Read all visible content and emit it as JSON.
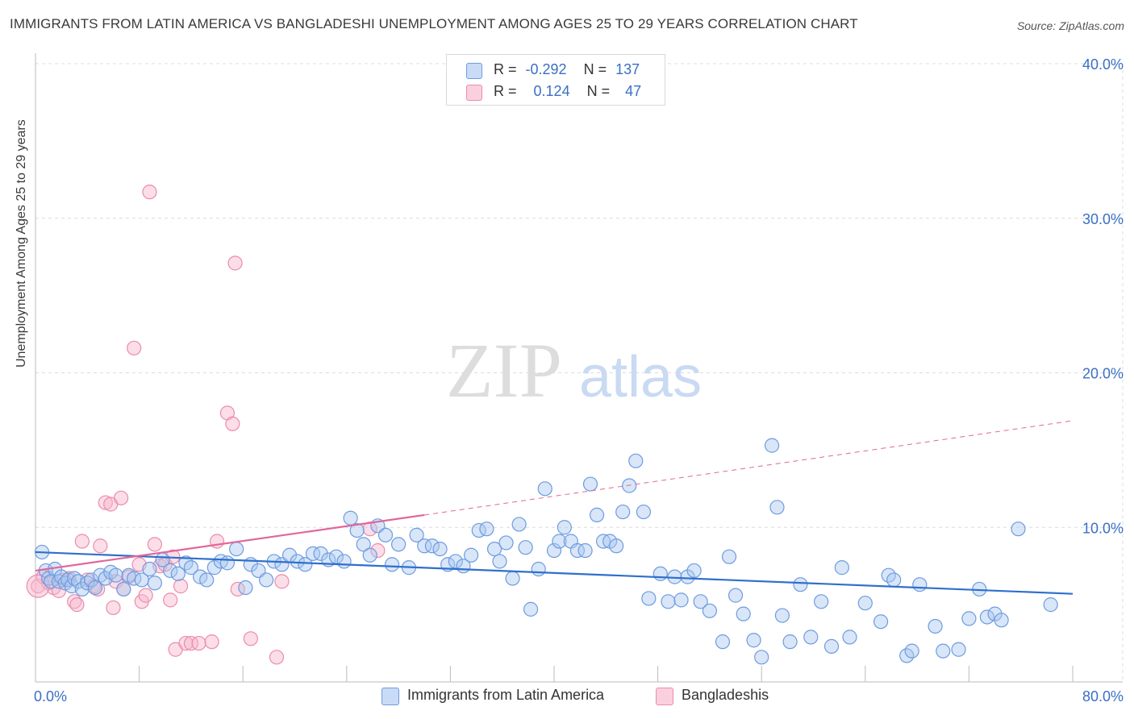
{
  "title": "IMMIGRANTS FROM LATIN AMERICA VS BANGLADESHI UNEMPLOYMENT AMONG AGES 25 TO 29 YEARS CORRELATION CHART",
  "source": "Source: ZipAtlas.com",
  "watermark": {
    "zip": "ZIP",
    "atlas": "atlas"
  },
  "legend": {
    "rows": [
      {
        "r_label": "R =",
        "r_value": "-0.292",
        "n_label": "N =",
        "n_value": "137"
      },
      {
        "r_label": "R =",
        "r_value": "0.124",
        "n_label": "N =",
        "n_value": "47"
      }
    ]
  },
  "bottom_legend": [
    "Immigrants from Latin America",
    "Bangladeshis"
  ],
  "colors": {
    "blue_fill": "#a9c7f0",
    "blue_stroke": "#6e9be0",
    "blue_line": "#2f6fcc",
    "pink_fill": "#f7b6cb",
    "pink_stroke": "#ec8bac",
    "pink_line": "#e0679a",
    "axis_text": "#3a6fc4",
    "grid": "#dcdcdc"
  },
  "chart_data": {
    "type": "scatter",
    "title": "IMMIGRANTS FROM LATIN AMERICA VS BANGLADESHI UNEMPLOYMENT AMONG AGES 25 TO 29 YEARS CORRELATION CHART",
    "xlabel": "",
    "ylabel": "Unemployment Among Ages 25 to 29 years",
    "xlim": [
      0,
      80
    ],
    "ylim": [
      0,
      40
    ],
    "x_tick_labels": [
      "0.0%",
      "80.0%"
    ],
    "y_ticks": [
      10,
      20,
      30,
      40
    ],
    "y_tick_labels": [
      "10.0%",
      "20.0%",
      "30.0%",
      "40.0%"
    ],
    "grid": true,
    "legend_position": "top-center",
    "series": [
      {
        "name": "Immigrants from Latin America",
        "r": -0.292,
        "n": 137,
        "trend": {
          "x": [
            0,
            80
          ],
          "y": [
            8.4,
            5.7
          ]
        },
        "points": [
          [
            0.5,
            8.4
          ],
          [
            0.8,
            7.2
          ],
          [
            1.0,
            6.7
          ],
          [
            1.2,
            6.5
          ],
          [
            1.5,
            7.3
          ],
          [
            1.8,
            6.5
          ],
          [
            2.0,
            6.8
          ],
          [
            2.3,
            6.4
          ],
          [
            2.5,
            6.6
          ],
          [
            2.8,
            6.2
          ],
          [
            3.0,
            6.7
          ],
          [
            3.3,
            6.5
          ],
          [
            3.6,
            6.0
          ],
          [
            4.0,
            6.4
          ],
          [
            4.3,
            6.6
          ],
          [
            4.6,
            6.1
          ],
          [
            5.0,
            6.9
          ],
          [
            5.4,
            6.7
          ],
          [
            5.8,
            7.1
          ],
          [
            6.2,
            6.9
          ],
          [
            6.8,
            6.0
          ],
          [
            7.2,
            6.9
          ],
          [
            7.6,
            6.7
          ],
          [
            8.2,
            6.6
          ],
          [
            8.8,
            7.3
          ],
          [
            9.2,
            6.4
          ],
          [
            9.8,
            7.9
          ],
          [
            10.4,
            7.2
          ],
          [
            11.0,
            7.0
          ],
          [
            11.6,
            7.7
          ],
          [
            12.0,
            7.4
          ],
          [
            12.7,
            6.8
          ],
          [
            13.2,
            6.6
          ],
          [
            13.8,
            7.4
          ],
          [
            14.3,
            7.8
          ],
          [
            14.8,
            7.7
          ],
          [
            15.5,
            8.6
          ],
          [
            16.2,
            6.1
          ],
          [
            16.6,
            7.6
          ],
          [
            17.2,
            7.2
          ],
          [
            17.8,
            6.6
          ],
          [
            18.4,
            7.8
          ],
          [
            19.0,
            7.6
          ],
          [
            19.6,
            8.2
          ],
          [
            20.2,
            7.8
          ],
          [
            20.8,
            7.6
          ],
          [
            21.4,
            8.3
          ],
          [
            22.0,
            8.3
          ],
          [
            22.6,
            7.9
          ],
          [
            23.2,
            8.1
          ],
          [
            23.8,
            7.8
          ],
          [
            24.3,
            10.6
          ],
          [
            24.8,
            9.8
          ],
          [
            25.3,
            8.9
          ],
          [
            25.8,
            8.2
          ],
          [
            26.4,
            10.1
          ],
          [
            27.0,
            9.5
          ],
          [
            27.5,
            7.6
          ],
          [
            28.0,
            8.9
          ],
          [
            28.8,
            7.4
          ],
          [
            29.4,
            9.5
          ],
          [
            30.0,
            8.8
          ],
          [
            30.6,
            8.8
          ],
          [
            31.2,
            8.6
          ],
          [
            31.8,
            7.6
          ],
          [
            32.4,
            7.8
          ],
          [
            33.0,
            7.5
          ],
          [
            33.6,
            8.2
          ],
          [
            34.2,
            9.8
          ],
          [
            34.8,
            9.9
          ],
          [
            35.4,
            8.6
          ],
          [
            35.8,
            7.8
          ],
          [
            36.3,
            9.0
          ],
          [
            36.8,
            6.7
          ],
          [
            37.3,
            10.2
          ],
          [
            37.8,
            8.7
          ],
          [
            38.2,
            4.7
          ],
          [
            38.8,
            7.3
          ],
          [
            39.3,
            12.5
          ],
          [
            40.0,
            8.5
          ],
          [
            40.4,
            9.1
          ],
          [
            40.8,
            10.0
          ],
          [
            41.3,
            9.1
          ],
          [
            41.8,
            8.5
          ],
          [
            42.4,
            8.5
          ],
          [
            42.8,
            12.8
          ],
          [
            43.3,
            10.8
          ],
          [
            43.8,
            9.1
          ],
          [
            44.3,
            9.1
          ],
          [
            44.8,
            8.8
          ],
          [
            45.3,
            11.0
          ],
          [
            45.8,
            12.7
          ],
          [
            46.3,
            14.3
          ],
          [
            46.9,
            11.0
          ],
          [
            47.3,
            5.4
          ],
          [
            48.2,
            7.0
          ],
          [
            48.8,
            5.2
          ],
          [
            49.3,
            6.8
          ],
          [
            49.8,
            5.3
          ],
          [
            50.3,
            6.8
          ],
          [
            50.8,
            7.2
          ],
          [
            51.3,
            5.2
          ],
          [
            52.0,
            4.6
          ],
          [
            53.0,
            2.6
          ],
          [
            53.5,
            8.1
          ],
          [
            54.0,
            5.6
          ],
          [
            54.6,
            4.4
          ],
          [
            55.4,
            2.7
          ],
          [
            56.0,
            1.6
          ],
          [
            56.8,
            15.3
          ],
          [
            57.2,
            11.3
          ],
          [
            57.6,
            4.3
          ],
          [
            58.2,
            2.6
          ],
          [
            59.0,
            6.3
          ],
          [
            59.8,
            2.9
          ],
          [
            60.6,
            5.2
          ],
          [
            61.4,
            2.3
          ],
          [
            62.2,
            7.4
          ],
          [
            62.8,
            2.9
          ],
          [
            64.0,
            5.1
          ],
          [
            65.2,
            3.9
          ],
          [
            65.8,
            6.9
          ],
          [
            66.2,
            6.6
          ],
          [
            67.2,
            1.7
          ],
          [
            67.6,
            2.0
          ],
          [
            68.2,
            6.3
          ],
          [
            69.4,
            3.6
          ],
          [
            70.0,
            2.0
          ],
          [
            71.2,
            2.1
          ],
          [
            72.0,
            4.1
          ],
          [
            72.8,
            6.0
          ],
          [
            73.4,
            4.2
          ],
          [
            74.0,
            4.4
          ],
          [
            74.5,
            4.0
          ],
          [
            75.8,
            9.9
          ],
          [
            78.3,
            5.0
          ]
        ]
      },
      {
        "name": "Bangladeshis",
        "r": 0.124,
        "n": 47,
        "trend": {
          "x": [
            0,
            30
          ],
          "y": [
            7.2,
            10.8
          ],
          "x_dashed": [
            30,
            80
          ],
          "y_dashed": [
            10.8,
            16.9
          ]
        },
        "points": [
          [
            0.2,
            6.2
          ],
          [
            0.6,
            6.8
          ],
          [
            1.0,
            6.4
          ],
          [
            1.4,
            6.1
          ],
          [
            1.8,
            5.9
          ],
          [
            2.2,
            6.6
          ],
          [
            2.6,
            6.7
          ],
          [
            3.0,
            5.2
          ],
          [
            3.2,
            5.0
          ],
          [
            3.6,
            9.1
          ],
          [
            4.0,
            6.6
          ],
          [
            4.5,
            6.2
          ],
          [
            4.8,
            6.0
          ],
          [
            5.0,
            8.8
          ],
          [
            5.4,
            11.6
          ],
          [
            5.8,
            11.5
          ],
          [
            6.0,
            4.8
          ],
          [
            6.2,
            6.5
          ],
          [
            6.6,
            11.9
          ],
          [
            6.8,
            6.0
          ],
          [
            7.2,
            6.8
          ],
          [
            7.6,
            21.6
          ],
          [
            8.0,
            7.6
          ],
          [
            8.2,
            5.2
          ],
          [
            8.5,
            5.6
          ],
          [
            8.8,
            31.7
          ],
          [
            9.2,
            8.9
          ],
          [
            9.6,
            7.5
          ],
          [
            10.0,
            7.6
          ],
          [
            10.4,
            5.3
          ],
          [
            10.6,
            8.1
          ],
          [
            10.8,
            2.1
          ],
          [
            11.2,
            6.2
          ],
          [
            11.6,
            2.5
          ],
          [
            12.0,
            2.5
          ],
          [
            12.6,
            2.5
          ],
          [
            13.6,
            2.6
          ],
          [
            14.0,
            9.1
          ],
          [
            14.8,
            17.4
          ],
          [
            15.2,
            16.7
          ],
          [
            15.4,
            27.1
          ],
          [
            15.6,
            6.0
          ],
          [
            16.6,
            2.8
          ],
          [
            18.6,
            1.6
          ],
          [
            19.0,
            6.5
          ],
          [
            25.8,
            9.9
          ],
          [
            26.4,
            8.5
          ]
        ]
      }
    ]
  }
}
